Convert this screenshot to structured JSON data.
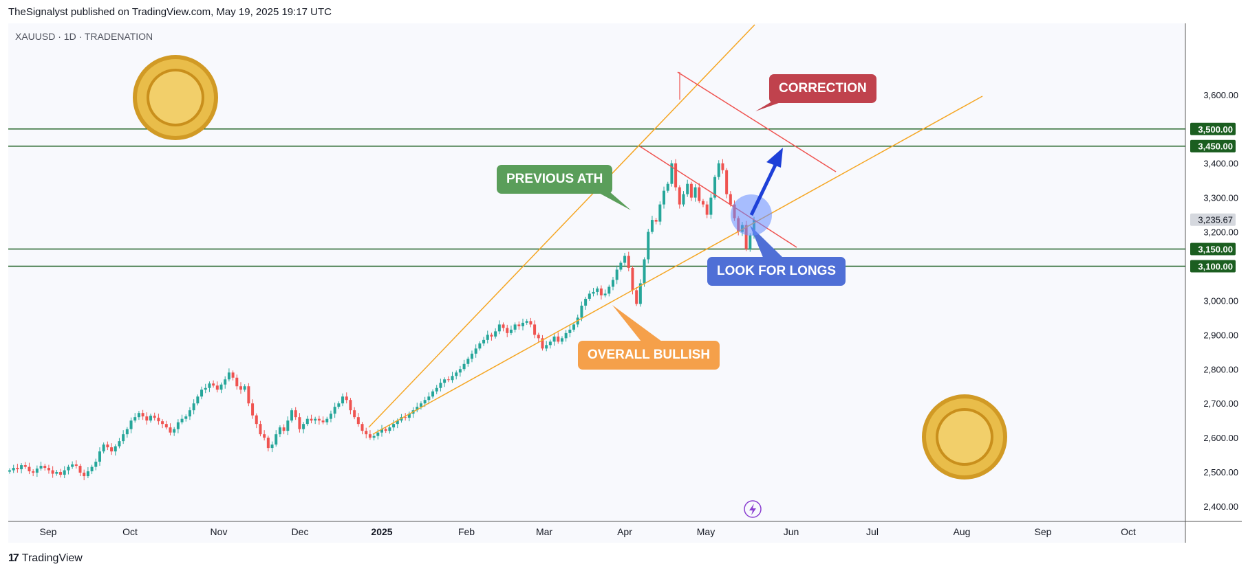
{
  "header": {
    "published_by": "TheSignalyst published on TradingView.com, May 19, 2025 19:17 UTC"
  },
  "footer": {
    "brand": "TradingView"
  },
  "colors": {
    "up": "#26a69a",
    "down": "#ef5350",
    "trend": "#f5a623",
    "level": "#1b5e20",
    "channel": "#ef5350",
    "arrow": "#1e40d8"
  },
  "annotations": {
    "correction": "CORRECTION",
    "previous_ath": "PREVIOUS ATH",
    "look_for_longs": "LOOK FOR LONGS",
    "overall_bullish": "OVERALL BULLISH"
  },
  "chart_data": {
    "type": "candlestick",
    "symbol_line": "XAUUSD · 1D · TRADENATION",
    "x_tick_labels": [
      "Sep",
      "Oct",
      "Nov",
      "Dec",
      "2025",
      "Feb",
      "Mar",
      "Apr",
      "May",
      "Jun",
      "Jul",
      "Aug",
      "Sep",
      "Oct"
    ],
    "y_tick_labels": [
      "3,600.00",
      "3,400.00",
      "3,300.00",
      "3,200.00",
      "3,000.00",
      "2,900.00",
      "2,800.00",
      "2,700.00",
      "2,600.00",
      "2,500.00",
      "2,400.00"
    ],
    "ylim": [
      2360,
      3660
    ],
    "last_price": {
      "label": "3,235.67",
      "value": 3235.67
    },
    "levels": [
      {
        "value": 3500,
        "label": "3,500.00"
      },
      {
        "value": 3450,
        "label": "3,450.00"
      },
      {
        "value": 3150,
        "label": "3,150.00"
      },
      {
        "value": 3100,
        "label": "3,100.00"
      }
    ],
    "candle_closes_approx": [
      2505,
      2512,
      2508,
      2520,
      2515,
      2502,
      2498,
      2510,
      2518,
      2512,
      2505,
      2495,
      2500,
      2492,
      2505,
      2515,
      2522,
      2518,
      2498,
      2488,
      2502,
      2515,
      2530,
      2560,
      2580,
      2572,
      2560,
      2575,
      2590,
      2610,
      2625,
      2650,
      2660,
      2672,
      2662,
      2650,
      2664,
      2658,
      2648,
      2640,
      2630,
      2615,
      2625,
      2645,
      2655,
      2662,
      2680,
      2700,
      2720,
      2740,
      2745,
      2758,
      2752,
      2740,
      2755,
      2770,
      2790,
      2775,
      2750,
      2740,
      2750,
      2700,
      2665,
      2640,
      2610,
      2600,
      2570,
      2580,
      2610,
      2630,
      2620,
      2650,
      2680,
      2660,
      2625,
      2640,
      2655,
      2650,
      2655,
      2650,
      2645,
      2655,
      2670,
      2690,
      2700,
      2720,
      2710,
      2680,
      2660,
      2640,
      2620,
      2610,
      2600,
      2605,
      2615,
      2625,
      2620,
      2630,
      2640,
      2650,
      2660,
      2658,
      2670,
      2680,
      2690,
      2700,
      2710,
      2720,
      2735,
      2745,
      2760,
      2770,
      2768,
      2780,
      2790,
      2800,
      2815,
      2830,
      2845,
      2860,
      2875,
      2885,
      2900,
      2895,
      2910,
      2930,
      2920,
      2905,
      2915,
      2930,
      2925,
      2935,
      2940,
      2930,
      2900,
      2890,
      2860,
      2870,
      2880,
      2895,
      2880,
      2890,
      2905,
      2915,
      2930,
      2950,
      2985,
      3005,
      3020,
      3025,
      3035,
      3015,
      3020,
      3040,
      3060,
      3090,
      3110,
      3130,
      3095,
      3030,
      2990,
      3050,
      3120,
      3200,
      3235,
      3230,
      3280,
      3320,
      3340,
      3400,
      3330,
      3280,
      3310,
      3340,
      3300,
      3330,
      3290,
      3280,
      3250,
      3300,
      3360,
      3400,
      3380,
      3310,
      3280,
      3240,
      3200,
      3220,
      3150,
      3190,
      3235
    ]
  }
}
